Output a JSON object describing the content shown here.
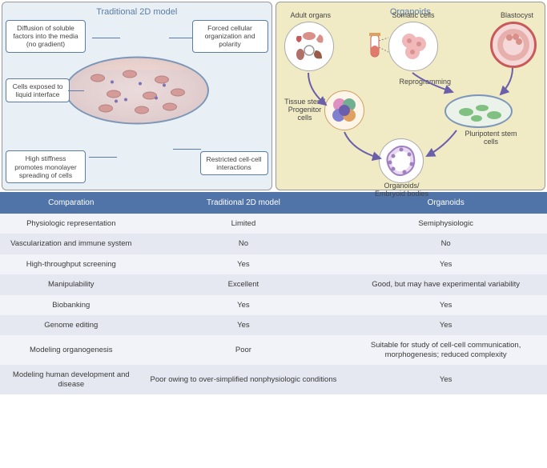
{
  "panels": {
    "left_title": "Traditional 2D model",
    "right_title": "Organoids",
    "callouts": {
      "diffusion": "Diffusion of soluble factors into the media (no gradient)",
      "forced": "Forced cellular organization and polarity",
      "exposed": "Cells exposed to liquid interface",
      "stiffness": "High stiffness promotes monolayer spreading of cells",
      "restricted": "Restricted cell-cell interactions"
    },
    "right_labels": {
      "adult_organs": "Adult organs",
      "somatic": "Somatic cells",
      "blastocyst": "Blastocyst",
      "reprogramming": "Reprogramming",
      "tissue_stem": "Tissue stem/ Progenitor cells",
      "pluripotent": "Pluripotent stem cells",
      "organoids": "Organoids/ Embryoid bodies"
    }
  },
  "table": {
    "headers": [
      "Comparation",
      "Traditional 2D model",
      "Organoids"
    ],
    "rows": [
      [
        "Physiologic representation",
        "Limited",
        "Semiphysiologic"
      ],
      [
        "Vascularization and immune system",
        "No",
        "No"
      ],
      [
        "High-throughput screening",
        "Yes",
        "Yes"
      ],
      [
        "Manipulability",
        "Excellent",
        "Good, but may have experimental variability"
      ],
      [
        "Biobanking",
        "Yes",
        "Yes"
      ],
      [
        "Genome editing",
        "Yes",
        "Yes"
      ],
      [
        "Modeling organogenesis",
        "Poor",
        "Suitable for study of cell-cell communication, morphogenesis; reduced complexity"
      ],
      [
        "Modeling human development and disease",
        "Poor owing to over-simplified nonphysiologic conditions",
        "Yes"
      ]
    ]
  },
  "colors": {
    "header_bg": "#5074a8",
    "row_even": "#e5e8f0",
    "row_odd": "#f1f3f8",
    "panel_left_bg": "#e8eff5",
    "panel_right_bg": "#f0eac5",
    "callout_border": "#5b7da5",
    "arrow_color": "#6b5eaa"
  }
}
